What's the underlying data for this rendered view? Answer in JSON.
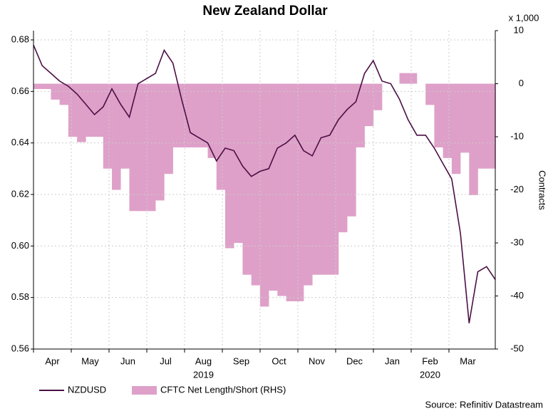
{
  "chart_data": {
    "type": "line-area",
    "title": "New Zealand Dollar",
    "months": [
      "Apr",
      "May",
      "Jun",
      "Jul",
      "Aug",
      "Sep",
      "Oct",
      "Nov",
      "Dec",
      "Jan",
      "Feb",
      "Mar"
    ],
    "years": [
      "2019",
      "2020"
    ],
    "y2_unit_label": "x 1,000",
    "y2_label": "Contracts",
    "source": "Source: Refinitiv Datastream",
    "ylim": [
      0.56,
      0.6836
    ],
    "yticks": [
      {
        "value": 0.56,
        "label": "0.56"
      },
      {
        "value": 0.58,
        "label": "0.58"
      },
      {
        "value": 0.6,
        "label": "0.60"
      },
      {
        "value": 0.62,
        "label": "0.62"
      },
      {
        "value": 0.64,
        "label": "0.64"
      },
      {
        "value": 0.66,
        "label": "0.66"
      },
      {
        "value": 0.68,
        "label": "0.68"
      }
    ],
    "y2lim": [
      -50,
      10
    ],
    "y2ticks": [
      -50,
      -40,
      -30,
      -20,
      -10,
      0,
      10
    ],
    "series": [
      {
        "name": "NZDUSD",
        "kind": "line",
        "color": "#4b0f45",
        "values": [
          0.678,
          0.67,
          0.667,
          0.664,
          0.662,
          0.659,
          0.655,
          0.651,
          0.654,
          0.661,
          0.655,
          0.65,
          0.663,
          0.665,
          0.667,
          0.676,
          0.671,
          0.657,
          0.644,
          0.642,
          0.64,
          0.633,
          0.638,
          0.637,
          0.631,
          0.627,
          0.629,
          0.63,
          0.638,
          0.64,
          0.643,
          0.637,
          0.635,
          0.642,
          0.643,
          0.649,
          0.653,
          0.656,
          0.667,
          0.672,
          0.664,
          0.663,
          0.657,
          0.649,
          0.643,
          0.643,
          0.638,
          0.632,
          0.626,
          0.605,
          0.57,
          0.59,
          0.592,
          0.587
        ]
      },
      {
        "name": "CFTC Net Length/Short (RHS)",
        "kind": "area",
        "axis": "y2",
        "color": "#dea0c8",
        "values": [
          -1,
          -1,
          -3,
          -4,
          -10,
          -11,
          -10,
          -10,
          -16,
          -20,
          -16,
          -24,
          -24,
          -24,
          -22,
          -17,
          -12,
          -12,
          -12,
          -12,
          -14,
          -20,
          -31,
          -30,
          -36,
          -38,
          -42,
          -39,
          -40,
          -41,
          -41,
          -38,
          -36,
          -36,
          -36,
          -28,
          -25,
          -12,
          -8,
          -5,
          0,
          0,
          2,
          2,
          0,
          -4,
          -12,
          -14,
          -17,
          -13,
          -21,
          -16,
          -16,
          -16
        ]
      }
    ]
  }
}
